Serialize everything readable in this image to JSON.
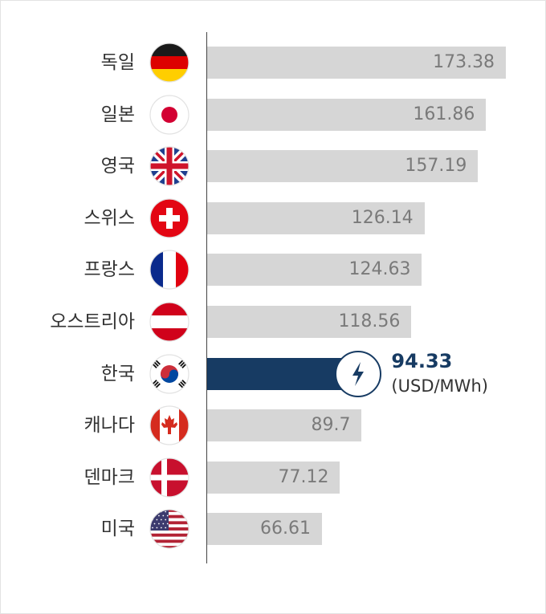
{
  "chart_data": {
    "type": "bar",
    "orientation": "horizontal",
    "title": "",
    "xlabel": "",
    "ylabel": "",
    "xlim": [
      0,
      180
    ],
    "grid": false,
    "categories": [
      "독일",
      "일본",
      "영국",
      "스위스",
      "프랑스",
      "오스트리아",
      "한국",
      "캐나다",
      "덴마크",
      "미국"
    ],
    "values": [
      173.38,
      161.86,
      157.19,
      126.14,
      124.63,
      118.56,
      94.33,
      89.7,
      77.12,
      66.61
    ],
    "value_labels": [
      "173.38",
      "161.86",
      "157.19",
      "126.14",
      "124.63",
      "118.56",
      "94.33",
      "89.7",
      "77.12",
      "66.61"
    ],
    "flag_icons": [
      "germany-flag-icon",
      "japan-flag-icon",
      "uk-flag-icon",
      "switzerland-flag-icon",
      "france-flag-icon",
      "austria-flag-icon",
      "korea-flag-icon",
      "canada-flag-icon",
      "denmark-flag-icon",
      "usa-flag-icon"
    ],
    "highlight_index": 6,
    "highlight_unit": "(USD/MWh)",
    "highlight_icon": "lightning-icon",
    "colors": {
      "bar": "#d6d6d6",
      "highlight": "#173b63",
      "value_text": "#7a7a7a"
    }
  }
}
